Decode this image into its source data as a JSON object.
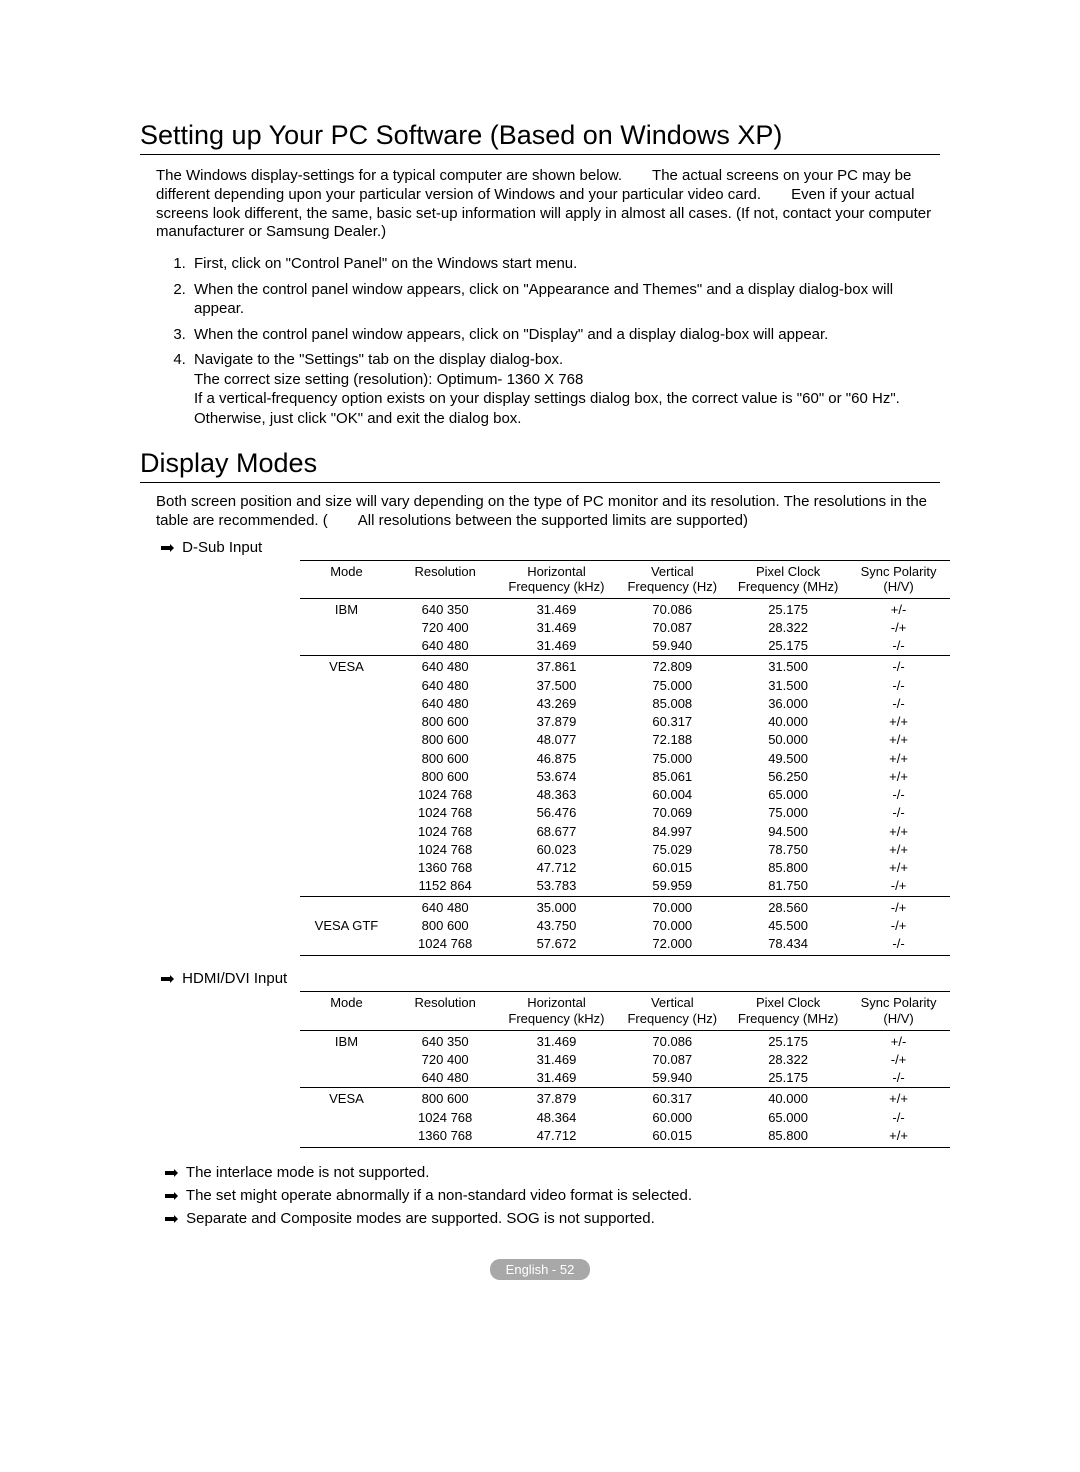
{
  "title1": "Setting up Your PC Software (Based on Windows XP)",
  "intro": "The Windows display-settings for a typical computer are shown below.  The actual screens on your PC may be different depending upon your particular version of Windows and your particular video card.  Even if your actual screens look different, the same, basic set-up information will apply in almost all cases. (If not, contact your computer manufacturer or Samsung Dealer.)",
  "steps": [
    "First, click on \"Control Panel\" on the Windows start menu.",
    "When the control panel window appears, click on \"Appearance and Themes\" and a display dialog-box will appear.",
    "When the control panel window appears, click on \"Display\" and a display dialog-box will appear.",
    "Navigate to the \"Settings\" tab on the display dialog-box."
  ],
  "step4_bold": "The correct size setting (resolution): Optimum- 1360 X 768",
  "step4_cont": "If a vertical-frequency option exists on your display settings dialog box, the correct value is \"60\" or \"60 Hz\". Otherwise, just click \"OK\" and exit the dialog box.",
  "title2": "Display Modes",
  "display_intro": "Both screen position and size will vary depending on the type of PC monitor and its resolution. The resolutions in the table are recommended. (  All resolutions between the supported limits are supported)",
  "dsub_label": "D-Sub Input",
  "hdmi_label": "HDMI/DVI Input",
  "columns": [
    "Mode",
    "Resolution",
    "Horizontal Frequency (kHz)",
    "Vertical Frequency (Hz)",
    "Pixel Clock Frequency (MHz)",
    "Sync Polarity (H/V)"
  ],
  "dsub_rows": [
    {
      "mode": "IBM",
      "res": "640 350",
      "h": "31.469",
      "v": "70.086",
      "p": "25.175",
      "s": "+/-",
      "group_start": true
    },
    {
      "mode": "",
      "res": "720 400",
      "h": "31.469",
      "v": "70.087",
      "p": "28.322",
      "s": "-/+"
    },
    {
      "mode": "",
      "res": "640 480",
      "h": "31.469",
      "v": "59.940",
      "p": "25.175",
      "s": "-/-"
    },
    {
      "mode": "VESA",
      "res": "640 480",
      "h": "37.861",
      "v": "72.809",
      "p": "31.500",
      "s": "-/-",
      "group_start": true
    },
    {
      "mode": "",
      "res": "640 480",
      "h": "37.500",
      "v": "75.000",
      "p": "31.500",
      "s": "-/-"
    },
    {
      "mode": "",
      "res": "640 480",
      "h": "43.269",
      "v": "85.008",
      "p": "36.000",
      "s": "-/-"
    },
    {
      "mode": "",
      "res": "800 600",
      "h": "37.879",
      "v": "60.317",
      "p": "40.000",
      "s": "+/+"
    },
    {
      "mode": "",
      "res": "800 600",
      "h": "48.077",
      "v": "72.188",
      "p": "50.000",
      "s": "+/+"
    },
    {
      "mode": "",
      "res": "800 600",
      "h": "46.875",
      "v": "75.000",
      "p": "49.500",
      "s": "+/+"
    },
    {
      "mode": "",
      "res": "800 600",
      "h": "53.674",
      "v": "85.061",
      "p": "56.250",
      "s": "+/+"
    },
    {
      "mode": "",
      "res": "1024 768",
      "h": "48.363",
      "v": "60.004",
      "p": "65.000",
      "s": "-/-"
    },
    {
      "mode": "",
      "res": "1024 768",
      "h": "56.476",
      "v": "70.069",
      "p": "75.000",
      "s": "-/-"
    },
    {
      "mode": "",
      "res": "1024 768",
      "h": "68.677",
      "v": "84.997",
      "p": "94.500",
      "s": "+/+"
    },
    {
      "mode": "",
      "res": "1024 768",
      "h": "60.023",
      "v": "75.029",
      "p": "78.750",
      "s": "+/+"
    },
    {
      "mode": "",
      "res": "1360 768",
      "h": "47.712",
      "v": "60.015",
      "p": "85.800",
      "s": "+/+"
    },
    {
      "mode": "",
      "res": "1152 864",
      "h": "53.783",
      "v": "59.959",
      "p": "81.750",
      "s": "-/+"
    },
    {
      "mode": "",
      "res": "640 480",
      "h": "35.000",
      "v": "70.000",
      "p": "28.560",
      "s": "-/+",
      "group_start": true
    },
    {
      "mode": "VESA GTF",
      "res": "800 600",
      "h": "43.750",
      "v": "70.000",
      "p": "45.500",
      "s": "-/+"
    },
    {
      "mode": "",
      "res": "1024 768",
      "h": "57.672",
      "v": "72.000",
      "p": "78.434",
      "s": "-/-",
      "last": true
    }
  ],
  "hdmi_rows": [
    {
      "mode": "IBM",
      "res": "640 350",
      "h": "31.469",
      "v": "70.086",
      "p": "25.175",
      "s": "+/-",
      "group_start": true
    },
    {
      "mode": "",
      "res": "720 400",
      "h": "31.469",
      "v": "70.087",
      "p": "28.322",
      "s": "-/+"
    },
    {
      "mode": "",
      "res": "640 480",
      "h": "31.469",
      "v": "59.940",
      "p": "25.175",
      "s": "-/-"
    },
    {
      "mode": "VESA",
      "res": "800 600",
      "h": "37.879",
      "v": "60.317",
      "p": "40.000",
      "s": "+/+",
      "group_start": true
    },
    {
      "mode": "",
      "res": "1024 768",
      "h": "48.364",
      "v": "60.000",
      "p": "65.000",
      "s": "-/-"
    },
    {
      "mode": "",
      "res": "1360 768",
      "h": "47.712",
      "v": "60.015",
      "p": "85.800",
      "s": "+/+",
      "last": true
    }
  ],
  "notes": [
    "The interlace mode is not supported.",
    "The set might operate abnormally if a non-standard video format is selected.",
    "Separate and Composite modes are supported. SOG is not supported."
  ],
  "page_footer": "English - 52"
}
